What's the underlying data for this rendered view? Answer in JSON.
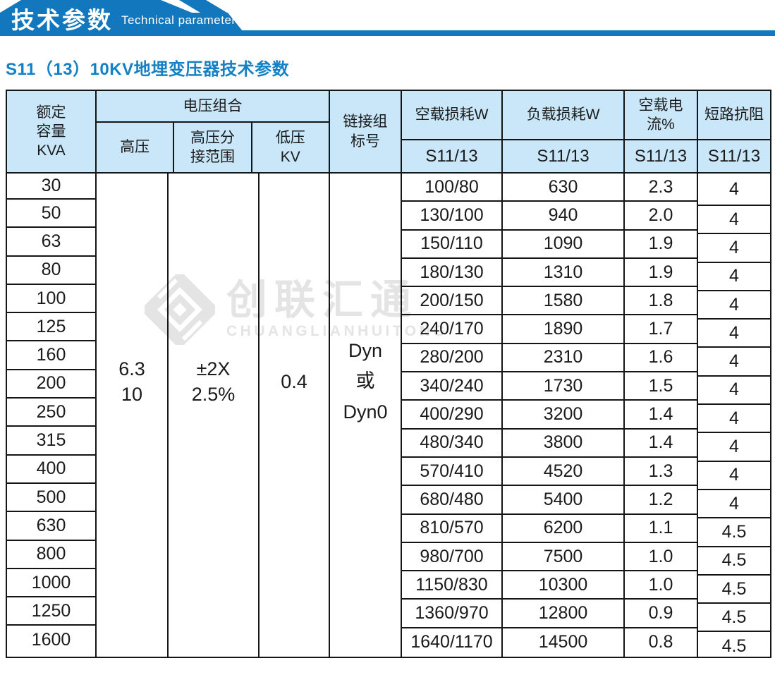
{
  "banner": {
    "title": "技术参数",
    "subtitle": "Technical parameter"
  },
  "section_title": "S11（13）10KV地埋变压器技术参数",
  "colors": {
    "banner_blue": "#1277bc",
    "table_header_bg": "#c9e7f9",
    "section_title_blue": "#1581c5",
    "table_border": "#151515",
    "watermark_gray": "#e4e4e4"
  },
  "watermark": {
    "cn": "创联汇通",
    "en": "CHUANGLIANHUITONG"
  },
  "table": {
    "header": {
      "capacity": "额定\n容量\nKVA",
      "voltage_group": "电压组合",
      "hv": "高压",
      "hv_tap": "高压分\n接范围",
      "lv": "低压\nKV",
      "link_group": "链接组\n标号",
      "no_load_loss": "空载损耗W",
      "load_loss": "负载损耗W",
      "no_load_current": "空载电流%",
      "impedance": "短路抗阻",
      "model": "S11/13"
    },
    "merged": {
      "hv": "6.3\n10",
      "hv_tap": "±2X\n2.5%",
      "lv": "0.4",
      "link": "Dyn\n或\nDyn0"
    },
    "rows": {
      "capacity": [
        "30",
        "50",
        "63",
        "80",
        "100",
        "125",
        "160",
        "200",
        "250",
        "315",
        "400",
        "500",
        "630",
        "800",
        "1000",
        "1250",
        "1600"
      ],
      "no_load_loss": [
        "100/80",
        "130/100",
        "150/110",
        "180/130",
        "200/150",
        "240/170",
        "280/200",
        "340/240",
        "400/290",
        "480/340",
        "570/410",
        "680/480",
        "810/570",
        "980/700",
        "1150/830",
        "1360/970",
        "1640/1170"
      ],
      "load_loss": [
        "630",
        "940",
        "1090",
        "1310",
        "1580",
        "1890",
        "2310",
        "1730",
        "3200",
        "3800",
        "4520",
        "5400",
        "6200",
        "7500",
        "10300",
        "12800",
        "14500"
      ],
      "no_load_current": [
        "2.3",
        "2.0",
        "1.9",
        "1.9",
        "1.8",
        "1.7",
        "1.6",
        "1.5",
        "1.4",
        "1.4",
        "1.3",
        "1.2",
        "1.1",
        "1.0",
        "1.0",
        "0.9",
        "0.8"
      ],
      "impedance": [
        "4",
        "4",
        "4",
        "4",
        "4",
        "4",
        "4",
        "4",
        "4",
        "4",
        "4",
        "4",
        "4.5",
        "4.5",
        "4.5",
        "4.5",
        "4.5"
      ]
    }
  }
}
